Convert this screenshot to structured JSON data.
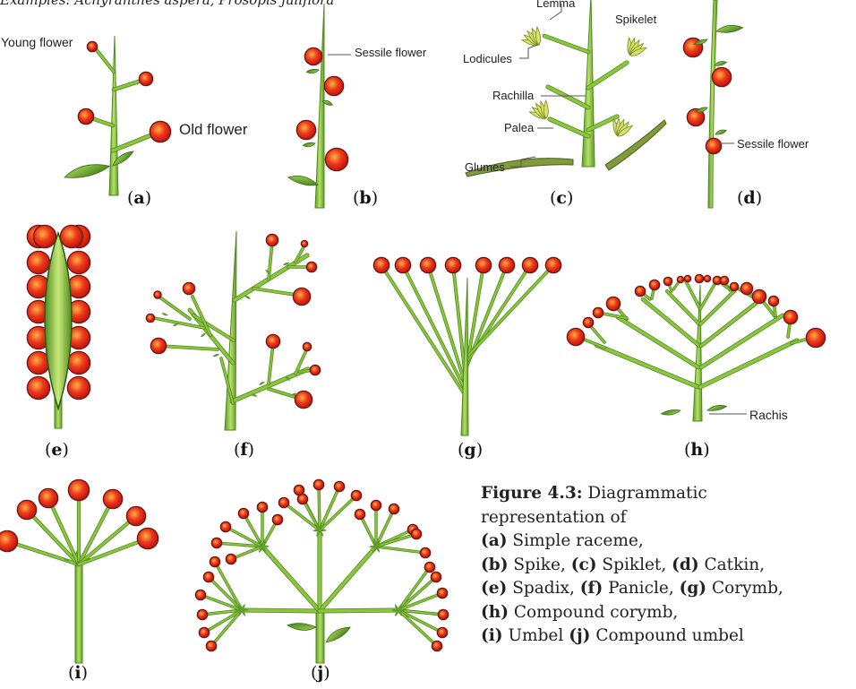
{
  "header_cut_text": "Examples: Achyranthes aspera, Prosopis juliflora",
  "labels": {
    "young_flower": "Young flower",
    "old_flower": "Old flower",
    "sessile_flower_b": "Sessile flower",
    "lemma": "Lemma",
    "spikelet": "Spikelet",
    "lodicules": "Lodicules",
    "rachilla": "Rachilla",
    "palea": "Palea",
    "glumes": "Glumes",
    "sessile_flower_d": "Sessile flower",
    "rachis": "Rachis"
  },
  "sublabels": [
    "a",
    "b",
    "c",
    "d",
    "e",
    "f",
    "g",
    "h",
    "i",
    "j"
  ],
  "caption": {
    "title": "Figure 4.3:",
    "line1_rest": " Diagrammatic",
    "line2": "representation of",
    "items": [
      {
        "letter": "a",
        "name": "Simple raceme,"
      },
      {
        "letter": "b",
        "name": "Spike,"
      },
      {
        "letter": "c",
        "name": "Spiklet,"
      },
      {
        "letter": "d",
        "name": "Catkin,"
      },
      {
        "letter": "e",
        "name": "Spadix,"
      },
      {
        "letter": "f",
        "name": "Panicle,"
      },
      {
        "letter": "g",
        "name": "Corymb,"
      },
      {
        "letter": "h",
        "name": "Compound corymb,"
      },
      {
        "letter": "i",
        "name": "Umbel"
      },
      {
        "letter": "j",
        "name": "Compound umbel"
      }
    ]
  },
  "colors": {
    "stem": "#8cc63f",
    "stem_dark": "#4f8a1e",
    "flower": "#e8291c",
    "flower_light": "#ffb347",
    "leaf": "#7bb63a",
    "spikelet": "#d6e36a"
  }
}
